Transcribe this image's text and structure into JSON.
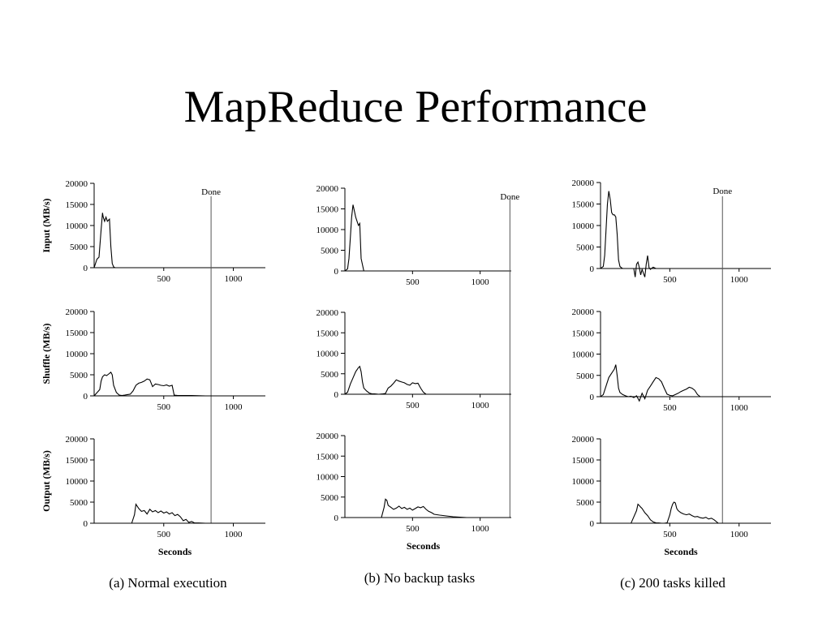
{
  "title": "MapReduce Performance",
  "chart_data": [
    {
      "type": "line",
      "column": "a",
      "row": "input",
      "ylabel": "Input (MB/s)",
      "xlabel": "",
      "ylim": [
        0,
        20000
      ],
      "xlim": [
        0,
        1230
      ],
      "yticks": [
        "0",
        "5000",
        "10000",
        "15000",
        "20000"
      ],
      "xticks": [
        "500",
        "1000"
      ],
      "done_label": "Done",
      "done_x": 840,
      "series": [
        {
          "x": [
            0,
            20,
            35,
            50,
            60,
            65,
            75,
            85,
            95,
            110,
            120,
            130,
            140,
            150,
            1230
          ],
          "y": [
            0,
            2000,
            2500,
            9000,
            13000,
            12000,
            11000,
            12000,
            11000,
            11500,
            5000,
            1000,
            200,
            0,
            0
          ]
        }
      ]
    },
    {
      "type": "line",
      "column": "a",
      "row": "shuffle",
      "ylabel": "Shuffle (MB/s)",
      "xlabel": "",
      "ylim": [
        0,
        20000
      ],
      "xlim": [
        0,
        1230
      ],
      "yticks": [
        "0",
        "5000",
        "10000",
        "15000",
        "20000"
      ],
      "xticks": [
        "500",
        "1000"
      ],
      "done_label": "",
      "done_x": 840,
      "series": [
        {
          "x": [
            0,
            40,
            50,
            60,
            75,
            90,
            105,
            120,
            130,
            140,
            160,
            180,
            200,
            220,
            240,
            260,
            280,
            300,
            320,
            340,
            360,
            380,
            400,
            420,
            440,
            460,
            480,
            500,
            520,
            540,
            560,
            575,
            600,
            700,
            800,
            1230
          ],
          "y": [
            0,
            1500,
            3500,
            4500,
            5000,
            4800,
            5200,
            5600,
            5000,
            2500,
            800,
            200,
            100,
            200,
            300,
            400,
            1200,
            2500,
            3000,
            3200,
            3500,
            4000,
            3800,
            2200,
            2800,
            2700,
            2500,
            2400,
            2600,
            2300,
            2500,
            200,
            100,
            100,
            0,
            0
          ]
        }
      ]
    },
    {
      "type": "line",
      "column": "a",
      "row": "output",
      "ylabel": "Output (MB/s)",
      "xlabel": "Seconds",
      "ylim": [
        0,
        20000
      ],
      "xlim": [
        0,
        1230
      ],
      "yticks": [
        "0",
        "5000",
        "10000",
        "15000",
        "20000"
      ],
      "xticks": [
        "500",
        "1000"
      ],
      "done_label": "",
      "done_x": 840,
      "series": [
        {
          "x": [
            0,
            270,
            290,
            300,
            310,
            320,
            340,
            360,
            380,
            400,
            420,
            440,
            460,
            480,
            500,
            520,
            540,
            560,
            580,
            600,
            620,
            640,
            660,
            680,
            700,
            720,
            750,
            800,
            900,
            1230
          ],
          "y": [
            0,
            0,
            2000,
            4500,
            4000,
            3500,
            2800,
            3000,
            2200,
            3300,
            2700,
            3000,
            2500,
            2900,
            2400,
            2700,
            2200,
            2500,
            1800,
            2100,
            1500,
            600,
            900,
            200,
            400,
            100,
            50,
            0,
            0,
            0
          ]
        }
      ]
    },
    {
      "type": "line",
      "column": "b",
      "row": "input",
      "ylabel": "",
      "xlabel": "",
      "ylim": [
        0,
        20000
      ],
      "xlim": [
        0,
        1230
      ],
      "yticks": [
        "0",
        "5000",
        "10000",
        "15000",
        "20000"
      ],
      "xticks": [
        "500",
        "1000"
      ],
      "done_label": "Done",
      "done_x": 1220,
      "series": [
        {
          "x": [
            0,
            20,
            30,
            40,
            50,
            60,
            70,
            80,
            90,
            100,
            110,
            120,
            140,
            1230
          ],
          "y": [
            0,
            500,
            3000,
            8000,
            13000,
            16000,
            14500,
            13000,
            12000,
            11000,
            11500,
            3000,
            0,
            0
          ]
        }
      ]
    },
    {
      "type": "line",
      "column": "b",
      "row": "shuffle",
      "ylabel": "",
      "xlabel": "",
      "ylim": [
        0,
        20000
      ],
      "xlim": [
        0,
        1230
      ],
      "yticks": [
        "0",
        "5000",
        "10000",
        "15000",
        "20000"
      ],
      "xticks": [
        "500",
        "1000"
      ],
      "done_label": "",
      "done_x": 1220,
      "series": [
        {
          "x": [
            0,
            20,
            40,
            60,
            80,
            100,
            110,
            120,
            130,
            140,
            160,
            180,
            200,
            220,
            250,
            280,
            300,
            320,
            340,
            360,
            380,
            400,
            420,
            440,
            460,
            480,
            500,
            520,
            540,
            560,
            580,
            600,
            1230
          ],
          "y": [
            0,
            500,
            2500,
            4000,
            5500,
            6500,
            6800,
            5500,
            3000,
            1500,
            800,
            300,
            100,
            100,
            0,
            100,
            200,
            1500,
            2000,
            2700,
            3500,
            3200,
            3000,
            2800,
            2400,
            2200,
            2800,
            2600,
            2700,
            1500,
            500,
            0,
            0
          ]
        }
      ]
    },
    {
      "type": "line",
      "column": "b",
      "row": "output",
      "ylabel": "",
      "xlabel": "Seconds",
      "ylim": [
        0,
        20000
      ],
      "xlim": [
        0,
        1230
      ],
      "yticks": [
        "0",
        "5000",
        "10000",
        "15000",
        "20000"
      ],
      "xticks": [
        "500",
        "1000"
      ],
      "done_label": "",
      "done_x": 1220,
      "series": [
        {
          "x": [
            0,
            270,
            290,
            300,
            310,
            320,
            340,
            360,
            380,
            400,
            420,
            440,
            460,
            480,
            500,
            520,
            540,
            560,
            580,
            600,
            620,
            640,
            660,
            700,
            750,
            800,
            850,
            900,
            1230
          ],
          "y": [
            0,
            0,
            2500,
            4500,
            4200,
            3000,
            2500,
            2000,
            2300,
            2800,
            2200,
            2500,
            2000,
            2300,
            1800,
            2200,
            2600,
            2400,
            2700,
            2000,
            1500,
            1200,
            800,
            600,
            400,
            200,
            100,
            0,
            0
          ]
        }
      ]
    },
    {
      "type": "line",
      "column": "c",
      "row": "input",
      "ylabel": "",
      "xlabel": "",
      "ylim": [
        0,
        20000
      ],
      "xlim": [
        0,
        1230
      ],
      "yticks": [
        "0",
        "5000",
        "10000",
        "15000",
        "20000"
      ],
      "xticks": [
        "500",
        "1000"
      ],
      "done_label": "Done",
      "done_x": 880,
      "series": [
        {
          "x": [
            0,
            20,
            30,
            40,
            50,
            60,
            70,
            80,
            90,
            100,
            110,
            120,
            130,
            140,
            150,
            160,
            200,
            240,
            250,
            260,
            270,
            280,
            290,
            300,
            320,
            330,
            340,
            350,
            360,
            370,
            380,
            400,
            420,
            1230
          ],
          "y": [
            0,
            500,
            3000,
            9000,
            15000,
            18000,
            16000,
            13000,
            12500,
            12500,
            12000,
            8000,
            2000,
            500,
            200,
            0,
            0,
            0,
            -2000,
            1000,
            1500,
            200,
            -1500,
            -200,
            -2000,
            1000,
            3000,
            200,
            -200,
            100,
            300,
            0,
            0,
            0
          ]
        }
      ]
    },
    {
      "type": "line",
      "column": "c",
      "row": "shuffle",
      "ylabel": "",
      "xlabel": "",
      "ylim": [
        0,
        20000
      ],
      "xlim": [
        0,
        1230
      ],
      "yticks": [
        "0",
        "5000",
        "10000",
        "15000",
        "20000"
      ],
      "xticks": [
        "500",
        "1000"
      ],
      "done_label": "",
      "done_x": 880,
      "series": [
        {
          "x": [
            0,
            20,
            40,
            60,
            80,
            100,
            110,
            120,
            130,
            140,
            160,
            180,
            200,
            220,
            240,
            260,
            280,
            300,
            320,
            340,
            360,
            380,
            400,
            420,
            440,
            460,
            480,
            500,
            520,
            540,
            560,
            580,
            600,
            620,
            640,
            660,
            680,
            700,
            720,
            1230
          ],
          "y": [
            0,
            500,
            2500,
            4500,
            5500,
            6500,
            7500,
            5000,
            2000,
            1000,
            500,
            200,
            0,
            100,
            -200,
            200,
            -1000,
            800,
            -500,
            1500,
            2500,
            3500,
            4500,
            4200,
            3500,
            2000,
            600,
            300,
            200,
            500,
            800,
            1200,
            1500,
            1800,
            2200,
            2000,
            1500,
            500,
            0,
            0
          ]
        }
      ]
    },
    {
      "type": "line",
      "column": "c",
      "row": "output",
      "ylabel": "",
      "xlabel": "Seconds",
      "ylim": [
        0,
        20000
      ],
      "xlim": [
        0,
        1230
      ],
      "yticks": [
        "0",
        "5000",
        "10000",
        "15000",
        "20000"
      ],
      "xticks": [
        "500",
        "1000"
      ],
      "done_label": "",
      "done_x": 880,
      "series": [
        {
          "x": [
            0,
            220,
            240,
            260,
            270,
            280,
            290,
            300,
            320,
            340,
            360,
            380,
            400,
            420,
            440,
            460,
            480,
            500,
            510,
            520,
            530,
            540,
            550,
            560,
            580,
            600,
            620,
            640,
            660,
            680,
            700,
            720,
            740,
            760,
            780,
            800,
            820,
            850,
            1230
          ],
          "y": [
            0,
            0,
            1500,
            3000,
            4500,
            4200,
            3800,
            3500,
            2500,
            1800,
            800,
            300,
            100,
            50,
            0,
            0,
            100,
            2000,
            3500,
            4500,
            5000,
            4800,
            3500,
            3000,
            2500,
            2200,
            2000,
            2200,
            1800,
            1500,
            1600,
            1300,
            1200,
            1400,
            1000,
            1200,
            800,
            0,
            0
          ]
        }
      ]
    }
  ],
  "captions": [
    "(a) Normal execution",
    "(b) No backup tasks",
    "(c) 200 tasks killed"
  ]
}
